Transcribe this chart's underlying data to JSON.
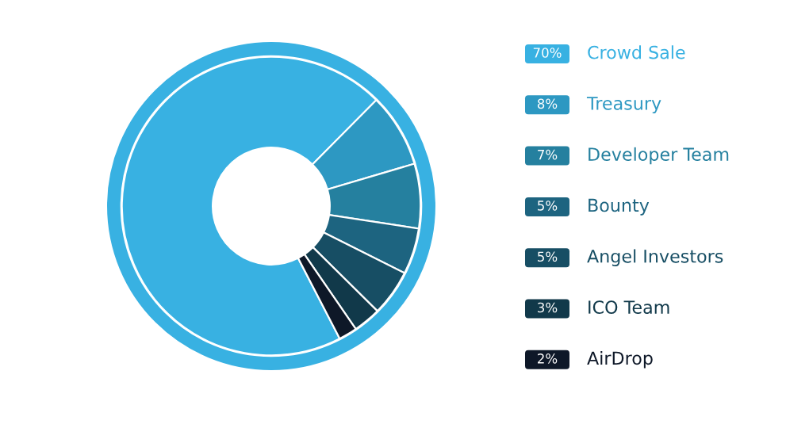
{
  "chart_data": {
    "type": "donut",
    "categories": [
      "Crowd Sale",
      "Treasury",
      "Developer Team",
      "Bounty",
      "Angel Investors",
      "ICO Team",
      "AirDrop"
    ],
    "values": [
      70,
      8,
      7,
      5,
      5,
      3,
      2
    ],
    "colors": [
      "#38b1e2",
      "#2d98c2",
      "#25809f",
      "#1d6480",
      "#174e64",
      "#11394a",
      "#0e1828"
    ],
    "value_labels": [
      "70%",
      "8%",
      "7%",
      "5%",
      "5%",
      "3%",
      "2%"
    ],
    "legend": "right"
  }
}
